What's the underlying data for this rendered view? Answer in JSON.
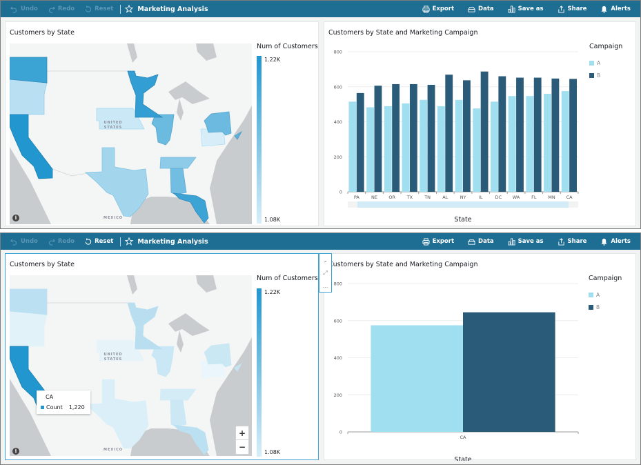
{
  "toolbar": {
    "undo": "Undo",
    "redo": "Redo",
    "reset": "Reset",
    "title": "Marketing Analysis",
    "export": "Export",
    "data": "Data",
    "save_as": "Save as",
    "share": "Share",
    "alerts": "Alerts",
    "icons": {
      "undo": "undo-icon",
      "redo": "redo-icon",
      "reset": "reset-icon",
      "favorite": "star-icon",
      "export": "printer-icon",
      "data": "database-icon",
      "save_as": "bar-chart-icon",
      "share": "share-icon",
      "alerts": "bell-icon"
    }
  },
  "colors": {
    "toolbar_bg": "#1e6d93",
    "campaign_a": "#a0dff0",
    "campaign_b": "#2a5b78",
    "map_high": "#2196cf",
    "map_low": "#d7eef9",
    "selection": "#3aa1d6"
  },
  "map_visual": {
    "title": "Customers by State",
    "legend_title": "Num of Customers",
    "legend_max": "1.22K",
    "legend_min": "1.08K",
    "label_country": [
      "UNITED",
      "STATES"
    ],
    "label_mexico": "MEXICO",
    "info_icon": "i"
  },
  "bar_visual": {
    "title": "Customers by State and Marketing Campaign",
    "legend_title": "Campaign",
    "legend": [
      "A",
      "B"
    ]
  },
  "tooltip": {
    "state": "CA",
    "label": "Count",
    "value": "1,220"
  },
  "zoom_controls": {
    "plus": "+",
    "minus": "−"
  },
  "visual_menu": {
    "collapse": "⌄",
    "expand": "⤢",
    "more": "…"
  },
  "chart_data": [
    {
      "type": "bar",
      "title": "Customers by State and Marketing Campaign",
      "xlabel": "State",
      "ylabel": "",
      "ylim": [
        0,
        800
      ],
      "yticks": [
        0,
        200,
        400,
        600,
        800
      ],
      "grid": true,
      "legend_title": "Campaign",
      "legend_position": "right",
      "categories": [
        "PA",
        "NE",
        "OR",
        "TX",
        "TN",
        "AL",
        "NY",
        "IL",
        "DC",
        "WA",
        "FL",
        "MN",
        "CA"
      ],
      "series": [
        {
          "name": "A",
          "values": [
            515,
            483,
            489,
            505,
            525,
            489,
            525,
            476,
            515,
            547,
            547,
            560,
            575
          ]
        },
        {
          "name": "B",
          "values": [
            564,
            606,
            615,
            615,
            611,
            669,
            637,
            687,
            660,
            652,
            652,
            647,
            645
          ]
        }
      ]
    },
    {
      "type": "bar",
      "title": "Customers by State and Marketing Campaign",
      "xlabel": "State",
      "ylabel": "",
      "ylim": [
        0,
        800
      ],
      "yticks": [
        0,
        200,
        400,
        600,
        800
      ],
      "grid": true,
      "legend_title": "Campaign",
      "legend_position": "right",
      "categories": [
        "CA"
      ],
      "series": [
        {
          "name": "A",
          "values": [
            575
          ]
        },
        {
          "name": "B",
          "values": [
            645
          ]
        }
      ]
    },
    {
      "type": "heatmap",
      "title": "Customers by State",
      "legend_title": "Num of Customers",
      "range": [
        1080,
        1220
      ],
      "states": [
        "PA",
        "NE",
        "OR",
        "TX",
        "TN",
        "AL",
        "NY",
        "IL",
        "DC",
        "WA",
        "FL",
        "MN",
        "CA"
      ],
      "values": [
        1079,
        1089,
        1104,
        1120,
        1136,
        1158,
        1162,
        1163,
        1175,
        1199,
        1199,
        1207,
        1220
      ]
    }
  ]
}
